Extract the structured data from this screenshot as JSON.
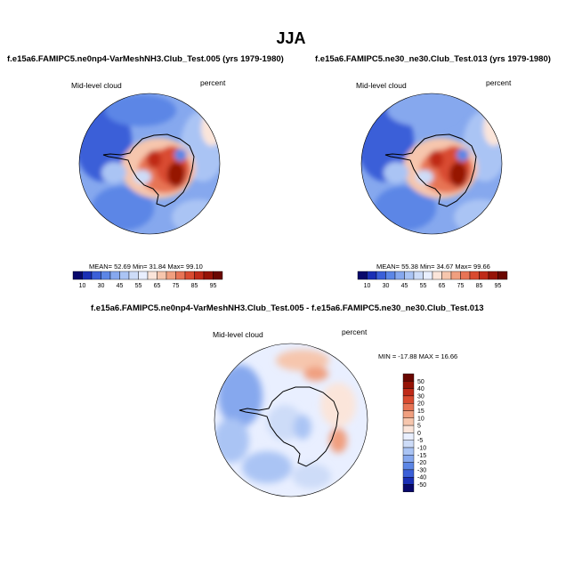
{
  "season": "JJA",
  "panels": [
    {
      "title": "f.e15a6.FAMIPC5.ne0np4-VarMeshNH3.Club_Test.005 (yrs 1979-1980)",
      "field": "Mid-level cloud",
      "units": "percent",
      "stats": "MEAN=  52.69  Min=  31.84  Max=  99.10"
    },
    {
      "title": "f.e15a6.FAMIPC5.ne30_ne30.Club_Test.013 (yrs 1979-1980)",
      "field": "Mid-level cloud",
      "units": "percent",
      "stats": "MEAN=  55.38  Min=  34.67  Max=  99.66"
    },
    {
      "title": "f.e15a6.FAMIPC5.ne0np4-VarMeshNH3.Club_Test.005 - f.e15a6.FAMIPC5.ne30_ne30.Club_Test.013",
      "field": "Mid-level cloud",
      "units": "percent",
      "stats": "MIN = -17.88 MAX =  16.66"
    }
  ],
  "colorbar_abs": {
    "labels": [
      "10",
      "30",
      "45",
      "55",
      "65",
      "75",
      "85",
      "95"
    ],
    "colors": [
      "#08086b",
      "#1a2fb5",
      "#3b5fd8",
      "#5c86e6",
      "#86a8ee",
      "#aac4f4",
      "#cddcf8",
      "#e9efff",
      "#fbe5da",
      "#f6c6ad",
      "#f09f7f",
      "#e77455",
      "#d94b30",
      "#bf2a18",
      "#961306",
      "#6a0701"
    ]
  },
  "colorbar_diff": {
    "labels": [
      "50",
      "40",
      "30",
      "20",
      "15",
      "10",
      "5",
      "0",
      "-5",
      "-10",
      "-15",
      "-20",
      "-30",
      "-40",
      "-50"
    ],
    "colors": [
      "#6a0701",
      "#961306",
      "#bf2a18",
      "#d94b30",
      "#e77455",
      "#f09f7f",
      "#f6c6ad",
      "#fbe5da",
      "#e9efff",
      "#cddcf8",
      "#aac4f4",
      "#86a8ee",
      "#5c86e6",
      "#3b5fd8",
      "#1a2fb5",
      "#08086b"
    ]
  }
}
